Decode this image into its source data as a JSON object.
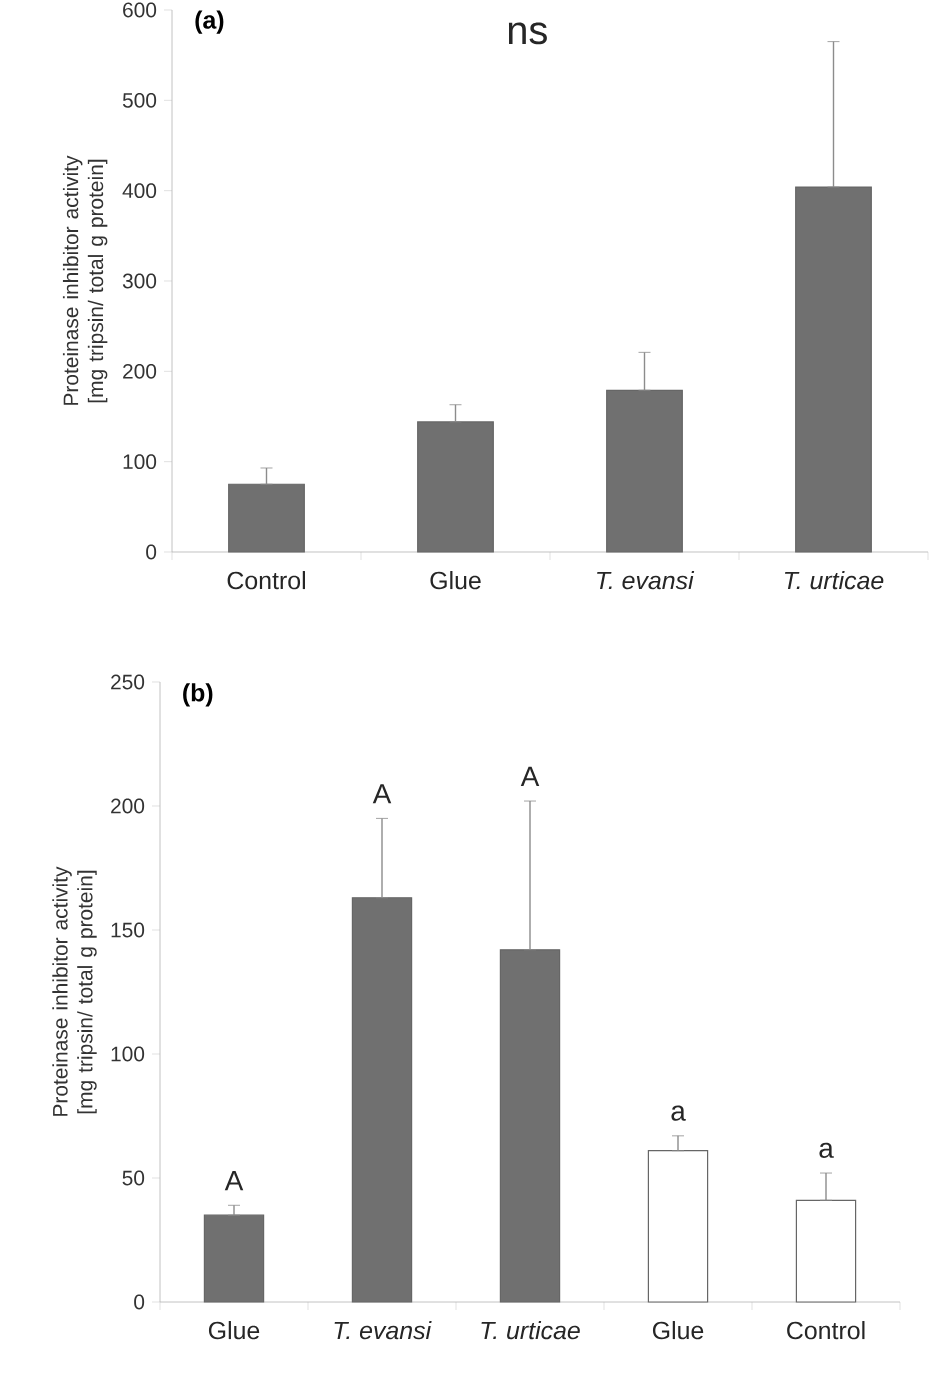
{
  "chart_data": [
    {
      "type": "bar",
      "title": "(a)",
      "ylabel": "Proteinase inhibitor activity [mg tripsin/ total g protein]",
      "categories": [
        "Control",
        "Glue",
        "*T. evansi*",
        "*T. urticae*"
      ],
      "values": [
        75,
        144,
        179,
        404
      ],
      "errors": [
        [
          75,
          93
        ],
        [
          144,
          163
        ],
        [
          179,
          221
        ],
        [
          404,
          565
        ]
      ],
      "color": "#707070",
      "ylim": [
        0,
        600
      ],
      "yticks": [
        0,
        100,
        200,
        300,
        400,
        500,
        600
      ],
      "annotations": [
        "ns"
      ]
    },
    {
      "type": "bar",
      "title": "(b)",
      "ylabel": "Proteinase inhibitor activity [mg tripsin/ total g protein]",
      "categories": [
        "Glue",
        "*T. evansi*",
        "*T. urticae*",
        "Glue",
        "Control"
      ],
      "values": [
        35,
        163,
        142,
        61,
        41
      ],
      "errors": [
        [
          35,
          39
        ],
        [
          163,
          195
        ],
        [
          142,
          202
        ],
        [
          61,
          67
        ],
        [
          41,
          52
        ]
      ],
      "colors": [
        "#707070",
        "#707070",
        "#707070",
        "#ffffff",
        "#ffffff"
      ],
      "ylim": [
        0,
        250
      ],
      "yticks": [
        0,
        50,
        100,
        150,
        200,
        250
      ],
      "annotations": [
        "A",
        "A",
        "A",
        "a",
        "a"
      ]
    }
  ]
}
